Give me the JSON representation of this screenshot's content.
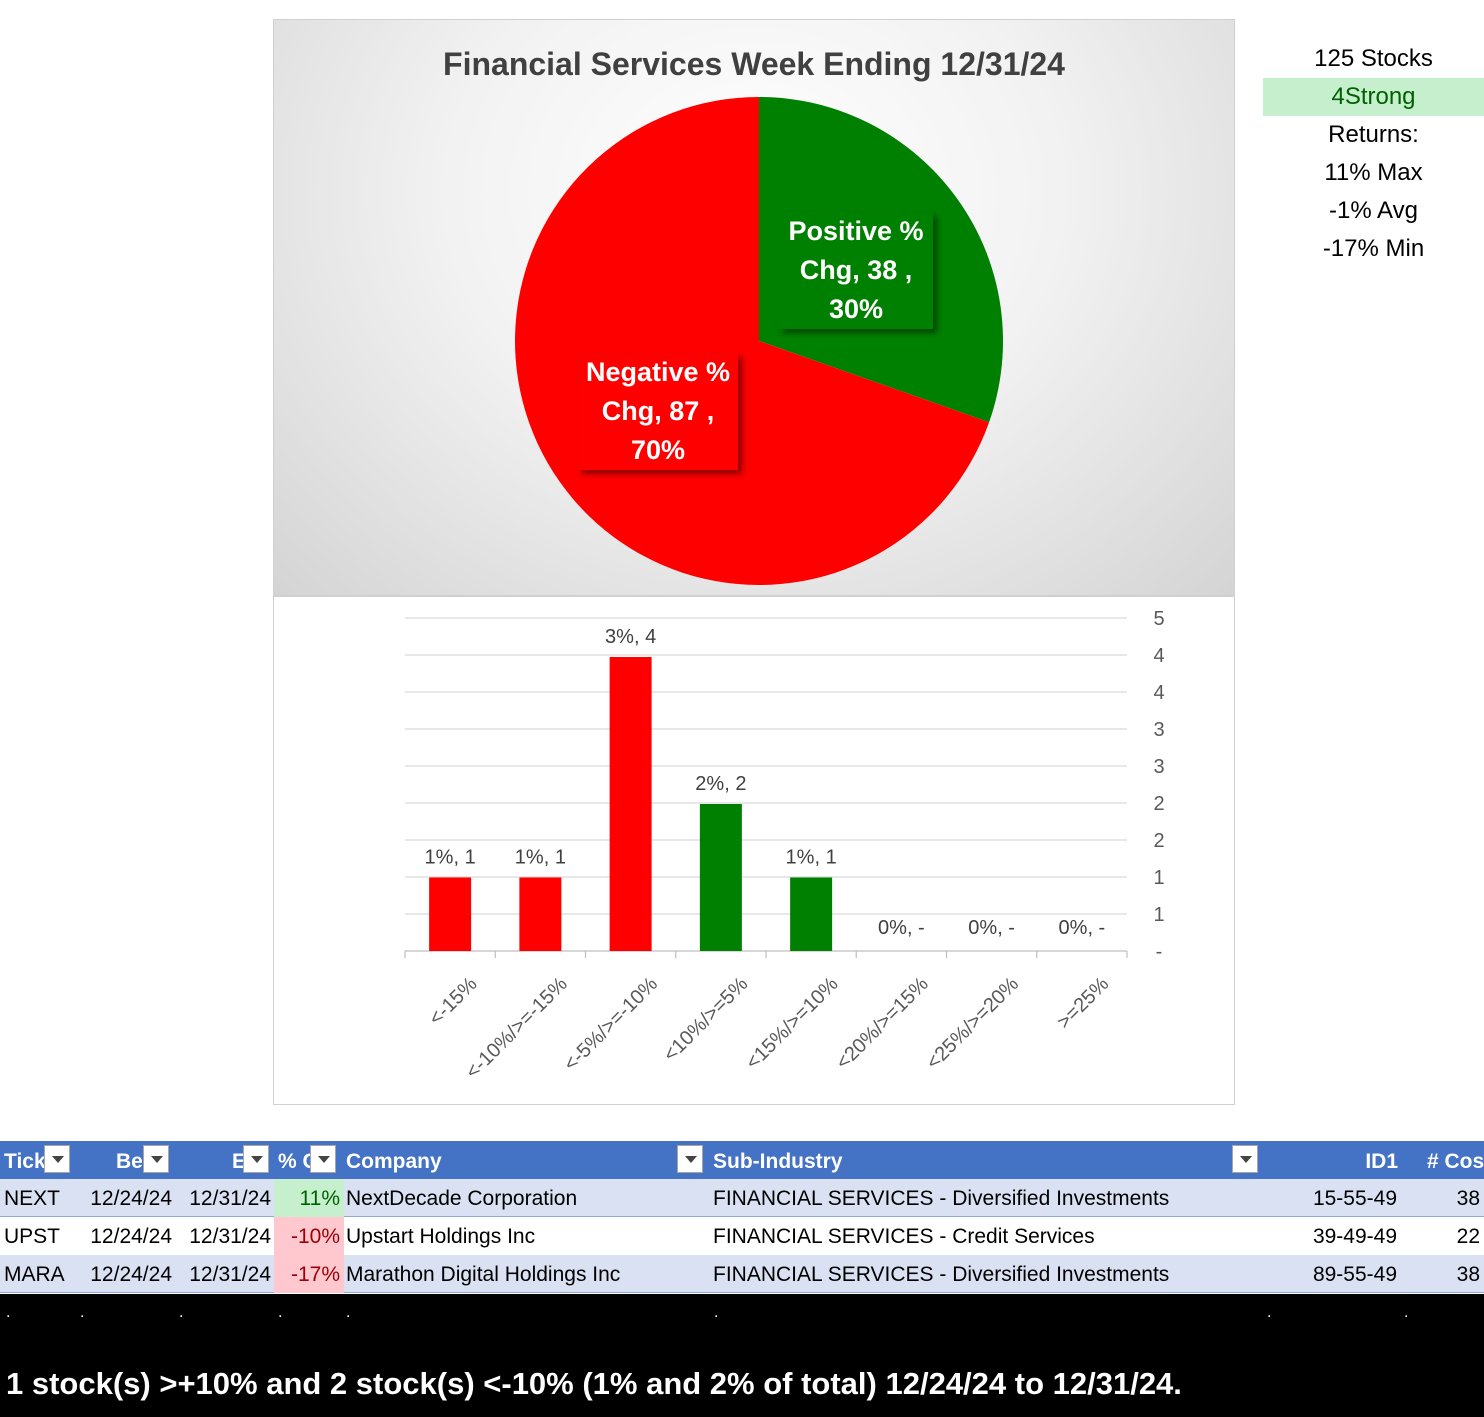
{
  "pie": {
    "title": "Financial Services Week Ending 12/31/24",
    "slices": [
      {
        "label_line1": "Positive %",
        "label_line2": "Chg,  38 ,",
        "label_line3": "30%",
        "value": 38,
        "percent": 30,
        "color": "#008000"
      },
      {
        "label_line1": "Negative %",
        "label_line2": "Chg,  87 ,",
        "label_line3": "70%",
        "value": 87,
        "percent": 70,
        "color": "#ff0000"
      }
    ]
  },
  "stats": {
    "stocks": "125 Stocks",
    "strong": "4Strong",
    "returns": "Returns:",
    "max": "11% Max",
    "avg": "-1% Avg",
    "min": "-17% Min"
  },
  "chart_data": {
    "type": "bar",
    "categories": [
      "<-15%",
      "<-10%/>=-15%",
      "<-5%/>=-10%",
      "<10%/>=5%",
      "<15%/>=10%",
      "<20%/>=15%",
      "<25%/>=20%",
      ">=25%"
    ],
    "values": [
      1,
      1,
      4,
      2,
      1,
      0,
      0,
      0
    ],
    "data_labels": [
      "1%,  1",
      "1%,  1",
      "3%,  4",
      "2%,  2",
      "1%,  1",
      "0%,  -",
      "0%,  -",
      "0%,  -"
    ],
    "colors": [
      "#ff0000",
      "#ff0000",
      "#ff0000",
      "#008000",
      "#008000",
      "#008000",
      "#008000",
      "#008000"
    ],
    "y_tick_labels": [
      "-",
      "1",
      "1",
      "2",
      "2",
      "3",
      "3",
      "4",
      "4",
      "5"
    ],
    "ylim": [
      0,
      4.5
    ],
    "y_axis_side": "right",
    "grid": true
  },
  "table": {
    "headers": [
      "Tick",
      "Be",
      "E",
      "% C",
      "Company",
      "Sub-Industry",
      "ID1",
      "# Cos"
    ],
    "rows": [
      {
        "ticker": "NEXT",
        "begin": "12/24/24",
        "end": "12/31/24",
        "pct": "11%",
        "company": "NextDecade Corporation",
        "subindustry": "FINANCIAL SERVICES - Diversified Investments",
        "id1": "15-55-49",
        "cos": "38",
        "sign": "pos"
      },
      {
        "ticker": "UPST",
        "begin": "12/24/24",
        "end": "12/31/24",
        "pct": "-10%",
        "company": "Upstart Holdings Inc",
        "subindustry": "FINANCIAL SERVICES - Credit Services",
        "id1": "39-49-49",
        "cos": "22",
        "sign": "neg"
      },
      {
        "ticker": "MARA",
        "begin": "12/24/24",
        "end": "12/31/24",
        "pct": "-17%",
        "company": "Marathon Digital Holdings Inc",
        "subindustry": "FINANCIAL SERVICES - Diversified Investments",
        "id1": "89-55-49",
        "cos": "38",
        "sign": "neg"
      }
    ]
  },
  "footer": {
    "dot": ".",
    "summary": "1 stock(s) >+10% and 2 stock(s) <-10% (1% and 2% of total) 12/24/24 to 12/31/24."
  }
}
